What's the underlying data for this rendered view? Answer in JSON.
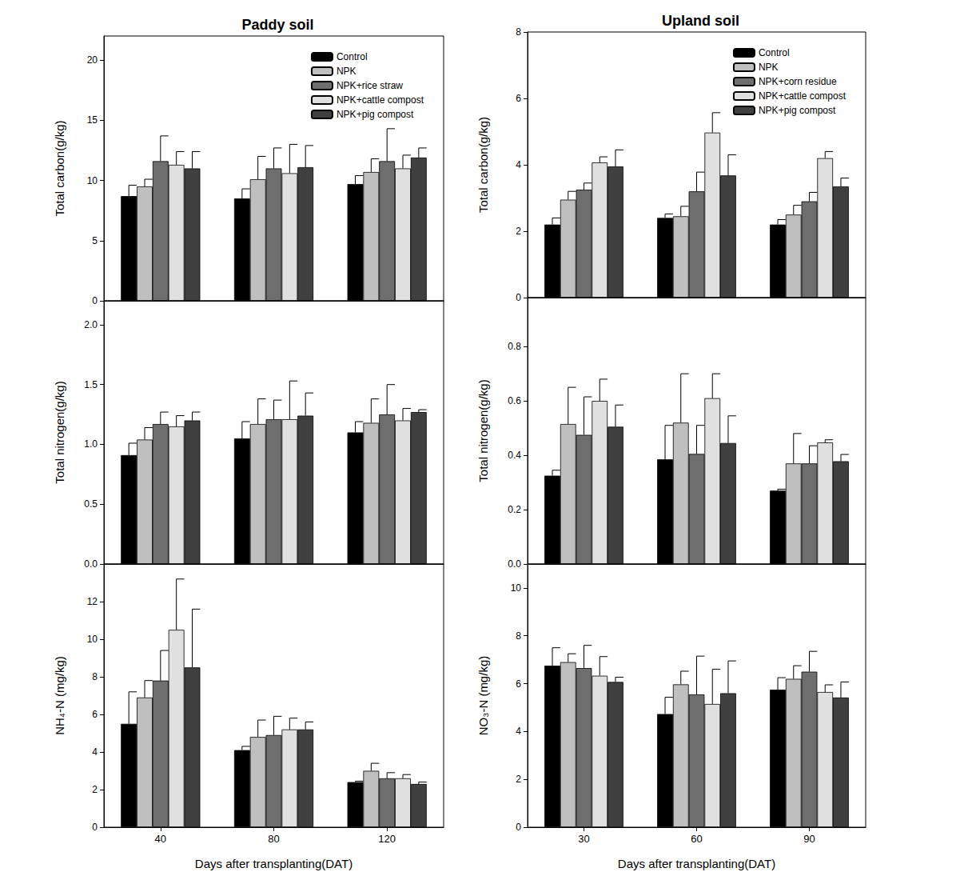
{
  "chart_data": [
    {
      "type": "bar",
      "title": "Paddy soil",
      "ylabel": "Total carbon(g/kg)",
      "categories": [
        "40",
        "80",
        "120"
      ],
      "ylim": [
        0,
        22
      ],
      "yticks": [
        0,
        5,
        10,
        15,
        20
      ],
      "grid": false,
      "legend": "upper right",
      "tick_labels": "y",
      "series": [
        {
          "name": "Control",
          "color": "#000000",
          "values": [
            8.7,
            8.5,
            9.7
          ],
          "errors": [
            0.9,
            0.8,
            0.7
          ]
        },
        {
          "name": "NPK",
          "color": "#bfbfbf",
          "values": [
            9.5,
            10.1,
            10.7
          ],
          "errors": [
            0.6,
            1.9,
            1.1
          ]
        },
        {
          "name": "NPK+rice straw",
          "color": "#6e6e6e",
          "values": [
            11.6,
            11.0,
            11.6
          ],
          "errors": [
            2.1,
            1.7,
            2.7
          ]
        },
        {
          "name": "NPK+cattle compost",
          "color": "#e0e0e0",
          "values": [
            11.3,
            10.6,
            11.0
          ],
          "errors": [
            1.1,
            2.4,
            1.1
          ]
        },
        {
          "name": "NPK+pig compost",
          "color": "#404040",
          "values": [
            11.0,
            11.1,
            11.9
          ],
          "errors": [
            1.4,
            1.8,
            0.8
          ]
        }
      ]
    },
    {
      "type": "bar",
      "ylabel": "Total nitrogen(g/kg)",
      "categories": [
        "40",
        "80",
        "120"
      ],
      "ylim": [
        0,
        2.2
      ],
      "yticks": [
        {
          "value": 0,
          "label": "0.0"
        },
        0.5,
        {
          "value": 1,
          "label": "1.0"
        },
        1.5,
        {
          "value": 2,
          "label": "2.0"
        }
      ],
      "grid": false,
      "tick_labels": "y",
      "series": [
        {
          "name": "Control",
          "color": "#000000",
          "values": [
            0.91,
            1.05,
            1.1
          ],
          "errors": [
            0.1,
            0.14,
            0.09
          ]
        },
        {
          "name": "NPK",
          "color": "#bfbfbf",
          "values": [
            1.04,
            1.17,
            1.18
          ],
          "errors": [
            0.1,
            0.21,
            0.2
          ]
        },
        {
          "name": "NPK+rice straw",
          "color": "#6e6e6e",
          "values": [
            1.17,
            1.21,
            1.25
          ],
          "errors": [
            0.1,
            0.16,
            0.25
          ]
        },
        {
          "name": "NPK+cattle compost",
          "color": "#e0e0e0",
          "values": [
            1.15,
            1.21,
            1.2
          ],
          "errors": [
            0.09,
            0.32,
            0.1
          ]
        },
        {
          "name": "NPK+pig compost",
          "color": "#404040",
          "values": [
            1.2,
            1.24,
            1.27
          ],
          "errors": [
            0.07,
            0.19,
            0.02
          ]
        }
      ]
    },
    {
      "type": "bar",
      "ylabel": "NH₄-N (mg/kg)",
      "xlabel": "Days after transplanting(DAT)",
      "categories": [
        "40",
        "80",
        "120"
      ],
      "ylim": [
        0,
        14
      ],
      "yticks": [
        0,
        2,
        4,
        6,
        8,
        10,
        12
      ],
      "grid": false,
      "series": [
        {
          "name": "Control",
          "color": "#000000",
          "values": [
            5.5,
            4.1,
            2.4
          ],
          "errors": [
            1.7,
            0.2,
            0.05
          ]
        },
        {
          "name": "NPK",
          "color": "#bfbfbf",
          "values": [
            6.9,
            4.8,
            3.0
          ],
          "errors": [
            0.9,
            0.9,
            0.4
          ]
        },
        {
          "name": "NPK+rice straw",
          "color": "#6e6e6e",
          "values": [
            7.8,
            4.9,
            2.6
          ],
          "errors": [
            1.6,
            1.0,
            0.3
          ]
        },
        {
          "name": "NPK+cattle compost",
          "color": "#e0e0e0",
          "values": [
            10.5,
            5.2,
            2.6
          ],
          "errors": [
            2.7,
            0.6,
            0.2
          ]
        },
        {
          "name": "NPK+pig compost",
          "color": "#404040",
          "values": [
            8.5,
            5.2,
            2.3
          ],
          "errors": [
            3.1,
            0.4,
            0.1
          ]
        }
      ]
    },
    {
      "type": "bar",
      "title": "Upland soil",
      "ylabel": "Total carbon(g/kg)",
      "categories": [
        "30",
        "60",
        "90"
      ],
      "ylim": [
        0,
        8
      ],
      "yticks": [
        0,
        2,
        4,
        6,
        8
      ],
      "grid": false,
      "legend": "upper right",
      "tick_labels": "y",
      "series": [
        {
          "name": "Control",
          "color": "#000000",
          "values": [
            2.2,
            2.4,
            2.2
          ],
          "errors": [
            0.2,
            0.12,
            0.15
          ]
        },
        {
          "name": "NPK",
          "color": "#bfbfbf",
          "values": [
            2.95,
            2.45,
            2.5
          ],
          "errors": [
            0.25,
            0.3,
            0.28
          ]
        },
        {
          "name": "NPK+corn residue",
          "color": "#6e6e6e",
          "values": [
            3.25,
            3.2,
            2.9
          ],
          "errors": [
            0.2,
            0.58,
            0.27
          ]
        },
        {
          "name": "NPK+cattle compost",
          "color": "#e0e0e0",
          "values": [
            4.07,
            4.97,
            4.2
          ],
          "errors": [
            0.17,
            0.6,
            0.2
          ]
        },
        {
          "name": "NPK+pig compost",
          "color": "#404040",
          "values": [
            3.95,
            3.68,
            3.35
          ],
          "errors": [
            0.5,
            0.62,
            0.25
          ]
        }
      ]
    },
    {
      "type": "bar",
      "ylabel": "Total nitrogen(g/kg)",
      "categories": [
        "30",
        "60",
        "90"
      ],
      "ylim": [
        0,
        0.98
      ],
      "yticks": [
        {
          "value": 0,
          "label": "0.0"
        },
        0.2,
        0.4,
        0.6,
        0.8
      ],
      "grid": false,
      "tick_labels": "y",
      "series": [
        {
          "name": "Control",
          "color": "#000000",
          "values": [
            0.325,
            0.385,
            0.27
          ],
          "errors": [
            0.02,
            0.125,
            0.005
          ]
        },
        {
          "name": "NPK",
          "color": "#bfbfbf",
          "values": [
            0.515,
            0.52,
            0.37
          ],
          "errors": [
            0.135,
            0.18,
            0.11
          ]
        },
        {
          "name": "NPK+corn residue",
          "color": "#6e6e6e",
          "values": [
            0.475,
            0.405,
            0.37
          ],
          "errors": [
            0.14,
            0.105,
            0.065
          ]
        },
        {
          "name": "NPK+cattle compost",
          "color": "#e0e0e0",
          "values": [
            0.6,
            0.61,
            0.447
          ],
          "errors": [
            0.08,
            0.09,
            0.01
          ]
        },
        {
          "name": "NPK+pig compost",
          "color": "#404040",
          "values": [
            0.505,
            0.445,
            0.378
          ],
          "errors": [
            0.08,
            0.1,
            0.025
          ]
        }
      ]
    },
    {
      "type": "bar",
      "ylabel": "NO₃-N (mg/kg)",
      "xlabel": "Days after transplanting(DAT)",
      "categories": [
        "30",
        "60",
        "90"
      ],
      "ylim": [
        0,
        11
      ],
      "yticks": [
        0,
        2,
        4,
        6,
        8,
        10
      ],
      "grid": false,
      "series": [
        {
          "name": "Control",
          "color": "#000000",
          "values": [
            6.75,
            4.73,
            5.75
          ],
          "errors": [
            0.75,
            0.7,
            0.5
          ]
        },
        {
          "name": "NPK",
          "color": "#bfbfbf",
          "values": [
            6.9,
            5.97,
            6.2
          ],
          "errors": [
            0.35,
            0.55,
            0.55
          ]
        },
        {
          "name": "NPK+corn residue",
          "color": "#6e6e6e",
          "values": [
            6.65,
            5.55,
            6.5
          ],
          "errors": [
            0.95,
            1.6,
            0.85
          ]
        },
        {
          "name": "NPK+cattle compost",
          "color": "#e0e0e0",
          "values": [
            6.33,
            5.15,
            5.65
          ],
          "errors": [
            0.8,
            1.45,
            0.3
          ]
        },
        {
          "name": "NPK+pig compost",
          "color": "#404040",
          "values": [
            6.07,
            5.6,
            5.42
          ],
          "errors": [
            0.2,
            1.35,
            0.65
          ]
        }
      ]
    }
  ]
}
